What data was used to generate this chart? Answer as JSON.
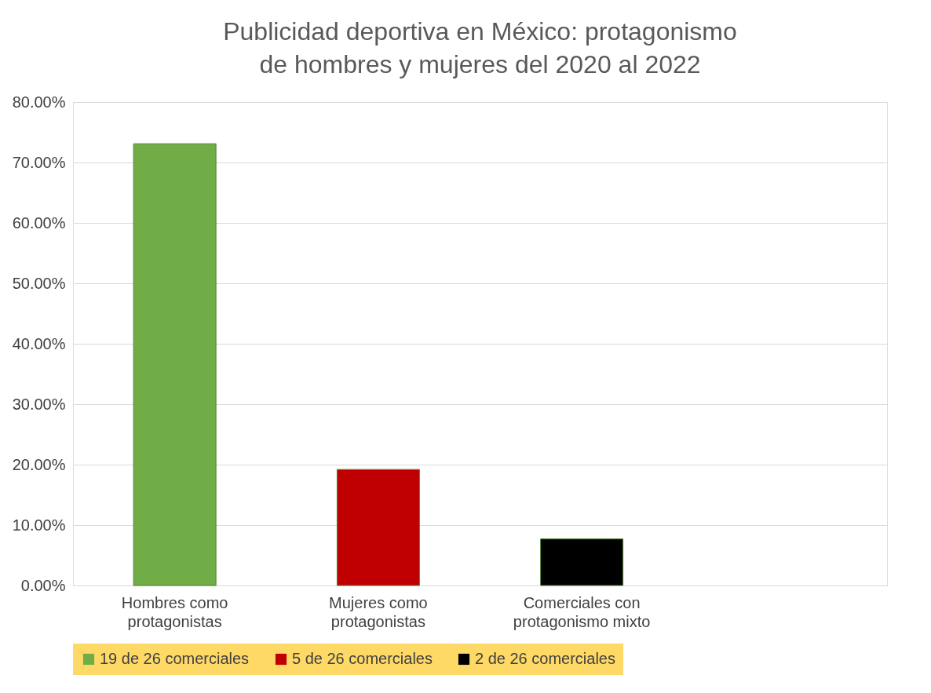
{
  "chart_data": {
    "type": "bar",
    "title": "Publicidad deportiva en México: protagonismo de hombres y mujeres del 2020 al 2022",
    "categories": [
      "Hombres como protagonistas",
      "Mujeres como protagonistas",
      "Comerciales con protagonismo mixto",
      null
    ],
    "series": [
      {
        "name": "19 de 26 comerciales",
        "color": "#70ad47",
        "values": [
          73.1,
          null,
          null,
          null
        ]
      },
      {
        "name": "5 de 26 comerciales",
        "color": "#c00000",
        "values": [
          null,
          19.2,
          null,
          null
        ]
      },
      {
        "name": "2 de 26 comerciales",
        "color": "#000000",
        "values": [
          null,
          null,
          7.7,
          null
        ]
      }
    ],
    "ylim": [
      0,
      80
    ],
    "yticks": [
      {
        "value": 0,
        "label": "0.00%"
      },
      {
        "value": 10,
        "label": "10.00%"
      },
      {
        "value": 20,
        "label": "20.00%"
      },
      {
        "value": 30,
        "label": "30.00%"
      },
      {
        "value": 40,
        "label": "40.00%"
      },
      {
        "value": 50,
        "label": "50.00%"
      },
      {
        "value": 60,
        "label": "60.00%"
      },
      {
        "value": 70,
        "label": "70.00%"
      },
      {
        "value": 80,
        "label": "80.00%"
      }
    ],
    "grid": "y",
    "legend": "bottom"
  }
}
